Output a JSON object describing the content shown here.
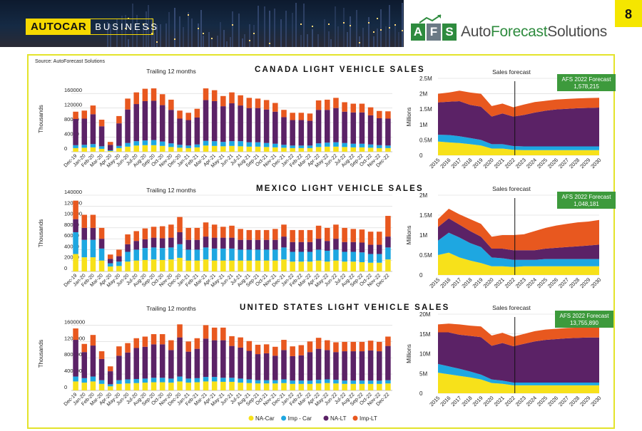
{
  "header": {
    "brand": "AUTOCAR",
    "brand_suffix": "BUSINESS",
    "afs_letters": [
      "A",
      "F",
      "S"
    ],
    "afs_name_part1": "Auto",
    "afs_name_part2": "Forecast",
    "afs_name_part3": "Solutions",
    "page_number": "8"
  },
  "source": "Source: AutoForecast Solutions",
  "colors": {
    "na_car": "#f7e11a",
    "imp_car": "#1ea7e1",
    "na_lt": "#5b2266",
    "imp_lt": "#e8581f",
    "forecast_box": "#3d9a3c"
  },
  "legend": [
    {
      "label": "NA-Car",
      "color": "#f7e11a"
    },
    {
      "label": "Imp - Car",
      "color": "#1ea7e1"
    },
    {
      "label": "NA-LT",
      "color": "#5b2266"
    },
    {
      "label": "Imp-LT",
      "color": "#e8581f"
    }
  ],
  "chart_data": [
    {
      "type": "bar",
      "stacked": true,
      "title": "CANADA LIGHT VEHICLE SALES",
      "subtitle": "Trailing 12 months",
      "ylabel": "Thousands",
      "ylim": [
        0,
        180000
      ],
      "yticks": [
        0,
        40000,
        80000,
        120000,
        160000
      ],
      "categories": [
        "Dec-19",
        "Jan-20",
        "Feb-20",
        "Mar-20",
        "Apr-20",
        "May-20",
        "Jun-20",
        "Jul-20",
        "Aug-20",
        "Sep-20",
        "Oct-20",
        "Nov-20",
        "Dec-20",
        "Jan-21",
        "Feb-21",
        "Mar-21",
        "Apr-21",
        "May-21",
        "Jun-21",
        "Jul-21",
        "Aug-21",
        "Sep-21",
        "Oct-21",
        "Nov-21",
        "Dec-21",
        "Jan-22",
        "Feb-22",
        "Mar-22",
        "Apr-22",
        "May-22",
        "Jun-22",
        "Jul-22",
        "Aug-22",
        "Sep-22",
        "Oct-22",
        "Nov-22",
        "Dec-22"
      ],
      "series": [
        {
          "name": "NA-Car",
          "values": [
            10000,
            11000,
            12000,
            8000,
            2000,
            10000,
            14000,
            17000,
            18000,
            18000,
            16000,
            13000,
            11000,
            10000,
            12000,
            17000,
            16000,
            15000,
            16000,
            15000,
            14000,
            14000,
            13000,
            12000,
            11000,
            10000,
            10000,
            10000,
            13000,
            14000,
            14000,
            13000,
            12000,
            12000,
            11000,
            10000,
            10000
          ]
        },
        {
          "name": "Imp - Car",
          "values": [
            8000,
            8000,
            9000,
            7000,
            2000,
            6000,
            10000,
            12000,
            13000,
            14000,
            12000,
            10000,
            8000,
            7000,
            8000,
            13000,
            13000,
            12000,
            13000,
            14000,
            12000,
            12000,
            11000,
            10000,
            8000,
            7000,
            7000,
            7000,
            10000,
            11000,
            12000,
            11000,
            10000,
            10000,
            9000,
            8000,
            7000
          ]
        },
        {
          "name": "NA-LT",
          "values": [
            72000,
            72000,
            82000,
            55000,
            15000,
            62000,
            92000,
            102000,
            108000,
            108000,
            100000,
            92000,
            72000,
            70000,
            74000,
            112000,
            110000,
            98000,
            104000,
            98000,
            94000,
            94000,
            92000,
            88000,
            76000,
            70000,
            70000,
            68000,
            92000,
            90000,
            94000,
            86000,
            86000,
            86000,
            80000,
            74000,
            74000
          ]
        },
        {
          "name": "Imp-LT",
          "values": [
            20000,
            22000,
            24000,
            18000,
            8000,
            20000,
            30000,
            32000,
            34000,
            34000,
            30000,
            28000,
            22000,
            20000,
            24000,
            32000,
            30000,
            28000,
            30000,
            28000,
            28000,
            26000,
            26000,
            24000,
            20000,
            20000,
            20000,
            20000,
            26000,
            28000,
            28000,
            26000,
            24000,
            24000,
            22000,
            20000,
            20000
          ]
        }
      ]
    },
    {
      "type": "area",
      "stacked": true,
      "title": "Sales forecast",
      "ylabel": "Millions",
      "ylim": [
        0,
        2.5
      ],
      "yticks": [
        "0",
        "0.5M",
        "1M",
        "1.5M",
        "2M",
        "2.5M"
      ],
      "x": [
        "2015",
        "2016",
        "2017",
        "2018",
        "2019",
        "2020",
        "2021",
        "2022",
        "2023",
        "2024",
        "2025",
        "2026",
        "2027",
        "2028",
        "2029",
        "2030"
      ],
      "divider_after": "2022",
      "annotation": [
        "AFS 2022 Forecast",
        "1,578,215"
      ],
      "series": [
        {
          "name": "NA-Car",
          "values": [
            0.45,
            0.42,
            0.4,
            0.36,
            0.32,
            0.22,
            0.22,
            0.18,
            0.17,
            0.17,
            0.17,
            0.17,
            0.17,
            0.17,
            0.17,
            0.17
          ]
        },
        {
          "name": "Imp - Car",
          "values": [
            0.22,
            0.24,
            0.22,
            0.2,
            0.18,
            0.14,
            0.14,
            0.12,
            0.12,
            0.12,
            0.12,
            0.12,
            0.12,
            0.12,
            0.12,
            0.12
          ]
        },
        {
          "name": "NA-LT",
          "values": [
            1.05,
            1.08,
            1.14,
            1.08,
            1.08,
            0.9,
            1.0,
            0.96,
            1.02,
            1.1,
            1.16,
            1.2,
            1.22,
            1.24,
            1.25,
            1.26
          ]
        },
        {
          "name": "Imp-LT",
          "values": [
            0.28,
            0.3,
            0.34,
            0.4,
            0.42,
            0.34,
            0.32,
            0.3,
            0.34,
            0.34,
            0.32,
            0.32,
            0.32,
            0.32,
            0.32,
            0.32
          ]
        }
      ]
    },
    {
      "type": "bar",
      "stacked": true,
      "title": "MEXICO LIGHT VEHICLE SALES",
      "subtitle": "Trailing 12 months",
      "ylabel": "Thousands",
      "ylim": [
        0,
        140000
      ],
      "yticks": [
        0,
        20000,
        40000,
        60000,
        80000,
        100000,
        120000,
        140000
      ],
      "categories": [
        "Dec-19",
        "Jan-20",
        "Feb-20",
        "Mar-20",
        "Apr-20",
        "May-20",
        "Jun-20",
        "Jul-20",
        "Aug-20",
        "Sep-20",
        "Oct-20",
        "Nov-20",
        "Dec-20",
        "Jan-21",
        "Feb-21",
        "Mar-21",
        "Apr-21",
        "May-21",
        "Jun-21",
        "Jul-21",
        "Aug-21",
        "Sep-21",
        "Oct-21",
        "Nov-21",
        "Dec-21",
        "Jan-22",
        "Feb-22",
        "Mar-22",
        "Apr-22",
        "May-22",
        "Jun-22",
        "Jul-22",
        "Aug-22",
        "Sep-22",
        "Oct-22",
        "Nov-22",
        "Dec-22"
      ],
      "series": [
        {
          "name": "NA-Car",
          "values": [
            32000,
            26000,
            26000,
            20000,
            9000,
            10000,
            18000,
            20000,
            21000,
            22000,
            21000,
            22000,
            25000,
            20000,
            20000,
            22000,
            20000,
            20000,
            20000,
            20000,
            20000,
            20000,
            20000,
            20000,
            22000,
            18000,
            18000,
            18000,
            20000,
            18000,
            20000,
            18000,
            18000,
            17000,
            16000,
            16000,
            22000
          ]
        },
        {
          "name": "Imp - Car",
          "values": [
            40000,
            32000,
            32000,
            22000,
            6000,
            8000,
            18000,
            20000,
            22000,
            22000,
            22000,
            22000,
            25000,
            20000,
            20000,
            22000,
            22000,
            22000,
            22000,
            20000,
            20000,
            20000,
            20000,
            20000,
            22000,
            18000,
            18000,
            18000,
            20000,
            20000,
            20000,
            18000,
            18000,
            18000,
            16000,
            16000,
            22000
          ]
        },
        {
          "name": "NA-LT",
          "values": [
            24000,
            22000,
            22000,
            18000,
            8000,
            10000,
            14000,
            16000,
            16000,
            18000,
            18000,
            18000,
            22000,
            18000,
            18000,
            20000,
            20000,
            20000,
            20000,
            18000,
            18000,
            18000,
            18000,
            18000,
            20000,
            18000,
            18000,
            18000,
            20000,
            18000,
            20000,
            18000,
            18000,
            18000,
            17000,
            17000,
            20000
          ]
        },
        {
          "name": "Imp-LT",
          "values": [
            34000,
            24000,
            24000,
            20000,
            8000,
            12000,
            18000,
            18000,
            20000,
            20000,
            22000,
            24000,
            28000,
            22000,
            22000,
            26000,
            24000,
            20000,
            22000,
            20000,
            18000,
            18000,
            18000,
            20000,
            22000,
            22000,
            22000,
            22000,
            24000,
            24000,
            26000,
            26000,
            24000,
            24000,
            24000,
            24000,
            38000
          ]
        }
      ]
    },
    {
      "type": "area",
      "stacked": true,
      "title": "Sales forecast",
      "ylabel": "Millions",
      "ylim": [
        0,
        2
      ],
      "yticks": [
        "0",
        "0.5M",
        "1M",
        "1.5M",
        "2M"
      ],
      "x": [
        "2015",
        "2016",
        "2017",
        "2018",
        "2019",
        "2020",
        "2021",
        "2022",
        "2023",
        "2024",
        "2025",
        "2026",
        "2027",
        "2028",
        "2029",
        "2030"
      ],
      "divider_after": "2022",
      "annotation": [
        "AFS 2022 Forecast",
        "1,048,181"
      ],
      "series": [
        {
          "name": "NA-Car",
          "values": [
            0.5,
            0.56,
            0.44,
            0.36,
            0.3,
            0.22,
            0.22,
            0.2,
            0.22,
            0.22,
            0.22,
            0.22,
            0.22,
            0.22,
            0.22,
            0.22
          ]
        },
        {
          "name": "Imp - Car",
          "values": [
            0.36,
            0.5,
            0.5,
            0.44,
            0.4,
            0.22,
            0.2,
            0.18,
            0.16,
            0.16,
            0.18,
            0.18,
            0.18,
            0.18,
            0.18,
            0.18
          ]
        },
        {
          "name": "NA-LT",
          "values": [
            0.34,
            0.36,
            0.32,
            0.3,
            0.26,
            0.22,
            0.24,
            0.24,
            0.24,
            0.24,
            0.26,
            0.28,
            0.3,
            0.32,
            0.34,
            0.36
          ]
        },
        {
          "name": "Imp-LT",
          "values": [
            0.2,
            0.24,
            0.26,
            0.3,
            0.32,
            0.3,
            0.34,
            0.38,
            0.4,
            0.48,
            0.52,
            0.56,
            0.58,
            0.6,
            0.6,
            0.62
          ]
        }
      ]
    },
    {
      "type": "bar",
      "stacked": true,
      "title": "UNITED STATES LIGHT VEHICLE SALES",
      "subtitle": "Trailing 12 months",
      "ylabel": "Thousands",
      "ylim": [
        0,
        1800000
      ],
      "yticks": [
        0,
        400000,
        800000,
        1200000,
        1600000
      ],
      "categories": [
        "Dec-19",
        "Jan-20",
        "Feb-20",
        "Mar-20",
        "Apr-20",
        "May-20",
        "Jun-20",
        "Jul-20",
        "Aug-20",
        "Sep-20",
        "Oct-20",
        "Nov-20",
        "Dec-20",
        "Jan-21",
        "Feb-21",
        "Mar-21",
        "Apr-21",
        "May-21",
        "Jun-21",
        "Jul-21",
        "Aug-21",
        "Sep-21",
        "Oct-21",
        "Nov-21",
        "Dec-21",
        "Jan-22",
        "Feb-22",
        "Mar-22",
        "Apr-22",
        "May-22",
        "Jun-22",
        "Jul-22",
        "Aug-22",
        "Sep-22",
        "Oct-22",
        "Nov-22",
        "Dec-22"
      ],
      "series": [
        {
          "name": "NA-Car",
          "values": [
            220000,
            190000,
            220000,
            160000,
            100000,
            160000,
            170000,
            180000,
            190000,
            200000,
            200000,
            190000,
            220000,
            190000,
            200000,
            220000,
            220000,
            210000,
            210000,
            190000,
            180000,
            170000,
            170000,
            170000,
            180000,
            160000,
            160000,
            160000,
            170000,
            180000,
            170000,
            160000,
            160000,
            160000,
            160000,
            160000,
            170000
          ]
        },
        {
          "name": "Imp - Car",
          "values": [
            120000,
            110000,
            120000,
            90000,
            50000,
            90000,
            100000,
            100000,
            100000,
            110000,
            110000,
            100000,
            120000,
            100000,
            100000,
            110000,
            110000,
            100000,
            100000,
            100000,
            90000,
            80000,
            80000,
            80000,
            90000,
            80000,
            80000,
            80000,
            90000,
            90000,
            90000,
            80000,
            80000,
            80000,
            80000,
            80000,
            80000
          ]
        },
        {
          "name": "NA-LT",
          "values": [
            900000,
            640000,
            760000,
            520000,
            320000,
            600000,
            660000,
            760000,
            780000,
            820000,
            820000,
            700000,
            960000,
            660000,
            720000,
            940000,
            900000,
            920000,
            780000,
            760000,
            700000,
            640000,
            660000,
            600000,
            720000,
            600000,
            620000,
            700000,
            760000,
            720000,
            680000,
            720000,
            720000,
            720000,
            740000,
            720000,
            840000
          ]
        },
        {
          "name": "Imp-LT",
          "values": [
            280000,
            200000,
            260000,
            190000,
            120000,
            230000,
            230000,
            240000,
            250000,
            250000,
            250000,
            240000,
            320000,
            250000,
            260000,
            330000,
            310000,
            310000,
            240000,
            250000,
            240000,
            230000,
            220000,
            220000,
            250000,
            240000,
            250000,
            260000,
            270000,
            240000,
            240000,
            230000,
            230000,
            230000,
            240000,
            230000,
            230000
          ]
        }
      ]
    },
    {
      "type": "area",
      "stacked": true,
      "title": "Sales forecast",
      "ylabel": "Millions",
      "ylim": [
        0,
        20
      ],
      "yticks": [
        "0",
        "5M",
        "10M",
        "15M",
        "20M"
      ],
      "x": [
        "2015",
        "2016",
        "2017",
        "2018",
        "2019",
        "2020",
        "2021",
        "2022",
        "2023",
        "2024",
        "2025",
        "2026",
        "2027",
        "2028",
        "2029",
        "2030"
      ],
      "divider_after": "2022",
      "annotation": [
        "AFS 2022 Forecast",
        "13,755,890"
      ],
      "series": [
        {
          "name": "NA-Car",
          "values": [
            5.2,
            4.8,
            4.4,
            4.0,
            3.5,
            2.6,
            2.4,
            2.0,
            2.0,
            2.0,
            2.0,
            2.0,
            2.0,
            2.0,
            2.0,
            2.0
          ]
        },
        {
          "name": "Imp - Car",
          "values": [
            2.2,
            2.0,
            1.8,
            1.5,
            1.2,
            0.9,
            0.8,
            0.7,
            0.7,
            0.7,
            0.7,
            0.7,
            0.7,
            0.7,
            0.7,
            0.7
          ]
        },
        {
          "name": "NA-LT",
          "values": [
            8.0,
            8.6,
            8.6,
            9.0,
            9.5,
            8.5,
            9.5,
            9.2,
            9.8,
            10.4,
            10.8,
            11.0,
            11.2,
            11.3,
            11.4,
            11.4
          ]
        },
        {
          "name": "Imp-LT",
          "values": [
            2.0,
            2.2,
            2.6,
            2.6,
            2.7,
            2.6,
            2.6,
            2.4,
            2.5,
            2.6,
            2.6,
            2.6,
            2.6,
            2.6,
            2.6,
            2.6
          ]
        }
      ]
    }
  ]
}
